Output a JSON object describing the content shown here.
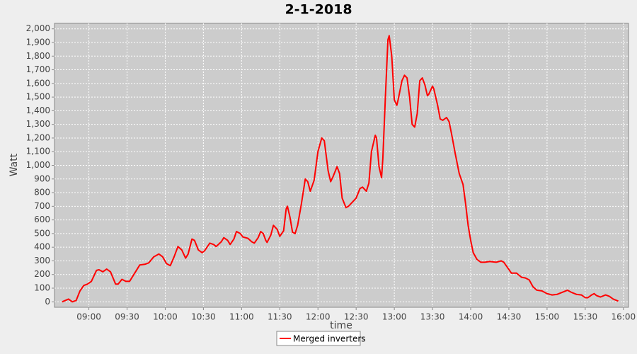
{
  "chart_data": {
    "type": "line",
    "title": "2-1-2018",
    "x_label": "time",
    "y_label": "Watt",
    "x": [
      "08:39",
      "08:44",
      "08:47",
      "08:50",
      "08:53",
      "08:56",
      "08:59",
      "09:02",
      "09:06",
      "09:08",
      "09:11",
      "09:14",
      "09:17",
      "09:21",
      "09:23",
      "09:26",
      "09:29",
      "09:32",
      "09:36",
      "09:40",
      "09:44",
      "09:47",
      "09:51",
      "09:55",
      "09:58",
      "10:01",
      "10:04",
      "10:07",
      "10:10",
      "10:13",
      "10:16",
      "10:18",
      "10:21",
      "10:23",
      "10:26",
      "10:29",
      "10:31",
      "10:35",
      "10:38",
      "10:40",
      "10:44",
      "10:46",
      "10:49",
      "10:51",
      "10:54",
      "10:56",
      "10:59",
      "11:01",
      "11:05",
      "11:08",
      "11:10",
      "11:13",
      "11:15",
      "11:17",
      "11:19",
      "11:20",
      "11:23",
      "11:25",
      "11:28",
      "11:30",
      "11:33",
      "11:35",
      "11:36",
      "11:38",
      "11:40",
      "11:42",
      "11:44",
      "11:47",
      "11:50",
      "11:52",
      "11:54",
      "11:57",
      "12:00",
      "12:03",
      "12:05",
      "12:08",
      "12:10",
      "12:12",
      "12:15",
      "12:17",
      "12:19",
      "12:22",
      "12:24",
      "12:27",
      "12:30",
      "12:33",
      "12:35",
      "12:38",
      "12:40",
      "12:42",
      "12:45",
      "12:46",
      "12:48",
      "12:50",
      "12:51",
      "12:53",
      "12:55",
      "12:56",
      "12:58",
      "13:00",
      "13:02",
      "13:03",
      "13:06",
      "13:08",
      "13:10",
      "13:12",
      "13:14",
      "13:16",
      "13:18",
      "13:20",
      "13:22",
      "13:24",
      "13:26",
      "13:27",
      "13:30",
      "13:31",
      "13:34",
      "13:36",
      "13:38",
      "13:41",
      "13:43",
      "13:45",
      "13:48",
      "13:51",
      "13:54",
      "13:56",
      "13:58",
      "14:00",
      "14:02",
      "14:05",
      "14:08",
      "14:11",
      "14:15",
      "14:20",
      "14:24",
      "14:26",
      "14:29",
      "14:32",
      "14:36",
      "14:40",
      "14:43",
      "14:46",
      "14:49",
      "14:52",
      "14:56",
      "15:00",
      "15:04",
      "15:08",
      "15:12",
      "15:16",
      "15:19",
      "15:23",
      "15:27",
      "15:30",
      "15:32",
      "15:35",
      "15:37",
      "15:39",
      "15:42",
      "15:46",
      "15:49",
      "15:52",
      "15:56"
    ],
    "series": [
      {
        "name": "Merged inverters",
        "color": "#ff0000",
        "values": [
          0,
          20,
          0,
          10,
          80,
          120,
          130,
          150,
          230,
          235,
          220,
          240,
          220,
          130,
          130,
          165,
          150,
          150,
          210,
          270,
          275,
          285,
          330,
          350,
          330,
          280,
          265,
          330,
          405,
          380,
          320,
          350,
          460,
          450,
          380,
          360,
          375,
          430,
          420,
          405,
          440,
          470,
          450,
          420,
          460,
          515,
          500,
          475,
          465,
          440,
          430,
          470,
          515,
          500,
          450,
          435,
          490,
          560,
          530,
          480,
          520,
          680,
          700,
          620,
          510,
          500,
          560,
          720,
          900,
          880,
          810,
          890,
          1100,
          1200,
          1180,
          960,
          880,
          920,
          990,
          940,
          760,
          690,
          700,
          730,
          760,
          830,
          840,
          810,
          870,
          1100,
          1220,
          1200,
          990,
          910,
          1050,
          1500,
          1920,
          1950,
          1800,
          1480,
          1440,
          1480,
          1620,
          1660,
          1640,
          1500,
          1300,
          1280,
          1380,
          1620,
          1640,
          1590,
          1510,
          1520,
          1580,
          1560,
          1440,
          1340,
          1330,
          1350,
          1320,
          1230,
          1080,
          940,
          860,
          720,
          560,
          450,
          360,
          310,
          290,
          290,
          295,
          290,
          300,
          290,
          250,
          210,
          210,
          180,
          175,
          160,
          110,
          85,
          80,
          60,
          50,
          55,
          70,
          85,
          70,
          55,
          50,
          30,
          30,
          50,
          60,
          45,
          35,
          50,
          40,
          20,
          5
        ]
      }
    ],
    "xlim": [
      "08:33",
      "16:04"
    ],
    "xticks": [
      "09:00",
      "09:30",
      "10:00",
      "10:30",
      "11:00",
      "11:30",
      "12:00",
      "12:30",
      "13:00",
      "13:30",
      "14:00",
      "14:30",
      "15:00",
      "15:30",
      "16:00"
    ],
    "ylim": [
      -40,
      2040
    ],
    "yticks": [
      0,
      100,
      200,
      300,
      400,
      500,
      600,
      700,
      800,
      900,
      {
        "value": 1000,
        "label": "1,000"
      },
      {
        "value": 1100,
        "label": "1,100"
      },
      {
        "value": 1200,
        "label": "1,200"
      },
      {
        "value": 1300,
        "label": "1,300"
      },
      {
        "value": 1400,
        "label": "1,400"
      },
      {
        "value": 1500,
        "label": "1,500"
      },
      {
        "value": 1600,
        "label": "1,600"
      },
      {
        "value": 1700,
        "label": "1,700"
      },
      {
        "value": 1800,
        "label": "1,800"
      },
      {
        "value": 1900,
        "label": "1,900"
      },
      {
        "value": 2000,
        "label": "2,000"
      }
    ],
    "grid": true,
    "legend": "bottom"
  }
}
